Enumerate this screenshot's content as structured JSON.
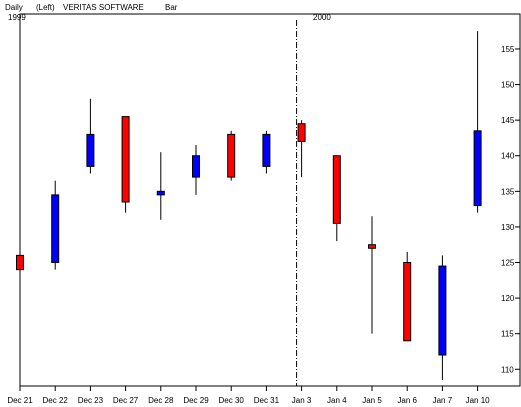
{
  "header": {
    "period": "Daily",
    "scale_side": "(Left)",
    "symbol_name": "VERITAS SOFTWARE",
    "chart_style": "Bar"
  },
  "year_labels": [
    "1999",
    "2000"
  ],
  "colors": {
    "up": "#0000ff",
    "down": "#ff0000",
    "wick": "#000000",
    "axis": "#000000",
    "background": "#ffffff"
  },
  "chart_data": {
    "type": "candlestick",
    "title": "",
    "y_axis_side": "right",
    "ylim": [
      108,
      159
    ],
    "yticks": [
      110,
      115,
      120,
      125,
      130,
      135,
      140,
      145,
      150,
      155
    ],
    "grid": false,
    "year_divider_before": "Jan 3",
    "categories": [
      "Dec 21",
      "Dec 22",
      "Dec 23",
      "Dec 27",
      "Dec 28",
      "Dec 29",
      "Dec 30",
      "Dec 31",
      "Jan 3",
      "Jan 4",
      "Jan 5",
      "Jan 6",
      "Jan 7",
      "Jan 10"
    ],
    "ohlc": [
      {
        "date": "Dec 21",
        "open": 126.0,
        "high": 127.5,
        "low": 119.0,
        "close": 124.0
      },
      {
        "date": "Dec 22",
        "open": 125.0,
        "high": 136.5,
        "low": 124.0,
        "close": 134.5
      },
      {
        "date": "Dec 23",
        "open": 138.5,
        "high": 148.0,
        "low": 137.5,
        "close": 143.0
      },
      {
        "date": "Dec 27",
        "open": 145.5,
        "high": 145.5,
        "low": 132.0,
        "close": 133.5
      },
      {
        "date": "Dec 28",
        "open": 134.5,
        "high": 140.5,
        "low": 131.0,
        "close": 135.0
      },
      {
        "date": "Dec 29",
        "open": 137.0,
        "high": 141.5,
        "low": 134.5,
        "close": 140.0
      },
      {
        "date": "Dec 30",
        "open": 143.0,
        "high": 143.5,
        "low": 136.5,
        "close": 137.0
      },
      {
        "date": "Dec 31",
        "open": 138.5,
        "high": 143.5,
        "low": 137.5,
        "close": 143.0
      },
      {
        "date": "Jan 3",
        "open": 144.5,
        "high": 145.0,
        "low": 137.0,
        "close": 142.0
      },
      {
        "date": "Jan 4",
        "open": 140.0,
        "high": 140.0,
        "low": 128.0,
        "close": 130.5
      },
      {
        "date": "Jan 5",
        "open": 127.5,
        "high": 131.5,
        "low": 115.0,
        "close": 127.0
      },
      {
        "date": "Jan 6",
        "open": 125.0,
        "high": 126.5,
        "low": 114.0,
        "close": 114.0
      },
      {
        "date": "Jan 7",
        "open": 112.0,
        "high": 126.0,
        "low": 108.5,
        "close": 124.5
      },
      {
        "date": "Jan 10",
        "open": 133.0,
        "high": 157.5,
        "low": 132.0,
        "close": 143.5
      }
    ]
  }
}
